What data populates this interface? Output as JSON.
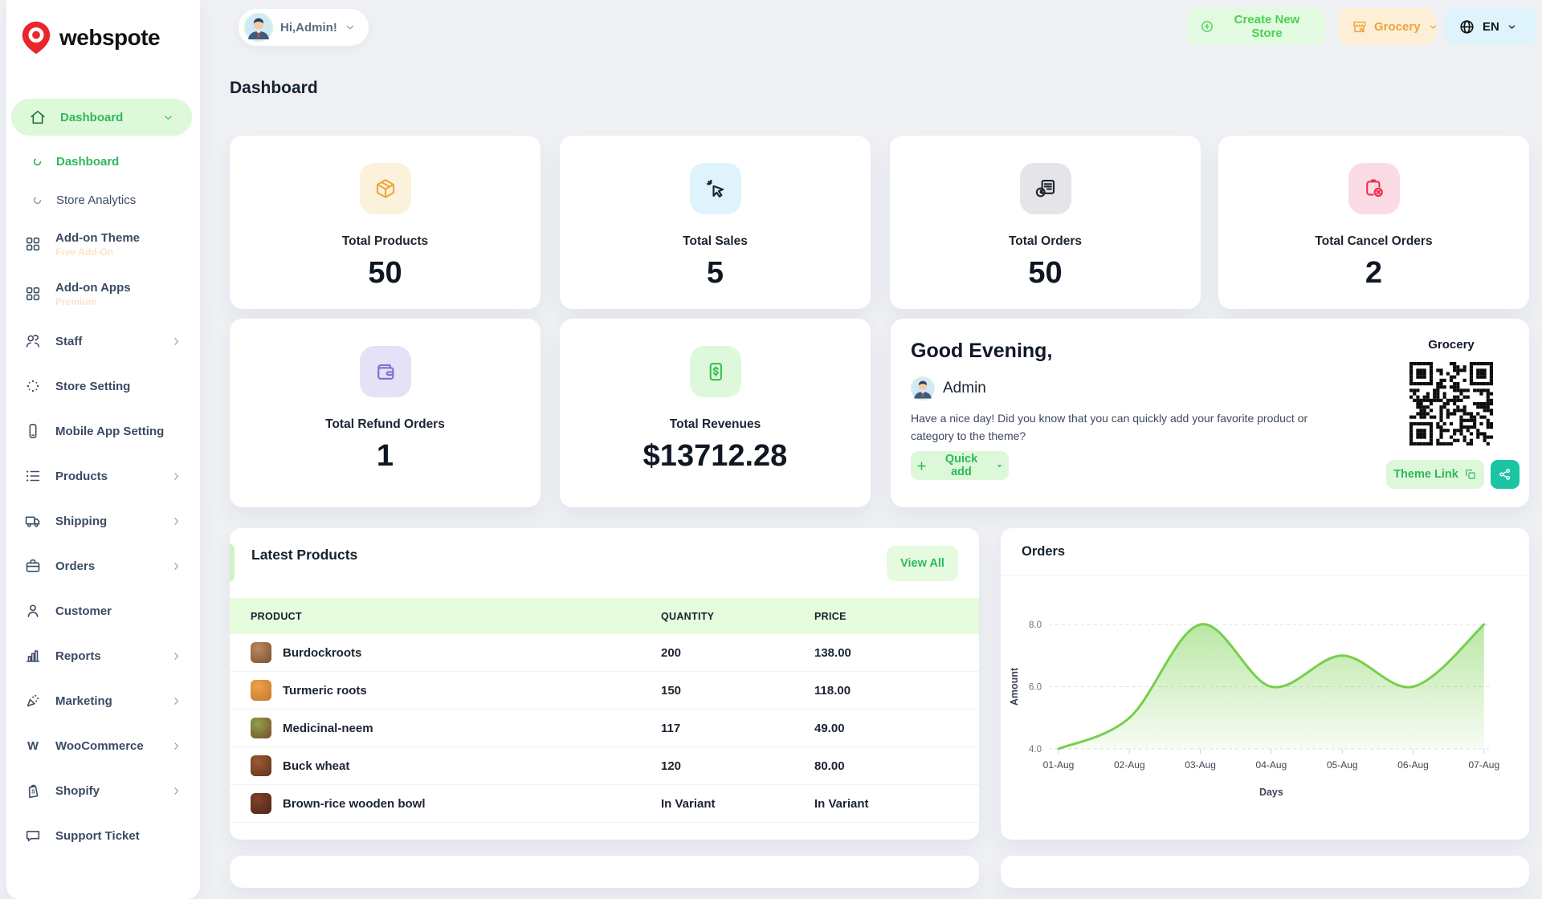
{
  "brand": {
    "name": "webspote"
  },
  "page": {
    "title": "Dashboard"
  },
  "topbar": {
    "user_button": {
      "label": "Hi,Admin!"
    },
    "create_store_label": "Create New Store",
    "store_selector": {
      "label": "Grocery"
    },
    "language": {
      "label": "EN"
    }
  },
  "sidebar": {
    "items": [
      {
        "type": "group",
        "label": "Dashboard",
        "icon": "home-icon",
        "chevron": "down",
        "active": true
      },
      {
        "type": "sub",
        "label": "Dashboard",
        "active": true
      },
      {
        "type": "sub",
        "label": "Store Analytics",
        "active": false
      },
      {
        "type": "addon",
        "label": "Add-on Theme",
        "icon": "grid-icon",
        "badge": "Free Add-On"
      },
      {
        "type": "addon",
        "label": "Add-on Apps",
        "icon": "grid-icon",
        "badge": "Premium"
      },
      {
        "type": "item",
        "label": "Staff",
        "icon": "users-icon",
        "chevron": "right"
      },
      {
        "type": "item",
        "label": "Store Setting",
        "icon": "spinner-dots-icon"
      },
      {
        "type": "item",
        "label": "Mobile App Setting",
        "icon": "smartphone-icon"
      },
      {
        "type": "item",
        "label": "Products",
        "icon": "list-icon",
        "chevron": "right"
      },
      {
        "type": "item",
        "label": "Shipping",
        "icon": "truck-icon",
        "chevron": "right"
      },
      {
        "type": "item",
        "label": "Orders",
        "icon": "briefcase-icon",
        "chevron": "right"
      },
      {
        "type": "item",
        "label": "Customer",
        "icon": "user-icon"
      },
      {
        "type": "item",
        "label": "Reports",
        "icon": "bar-chart-icon",
        "chevron": "right"
      },
      {
        "type": "item",
        "label": "Marketing",
        "icon": "megaphone-icon",
        "chevron": "right"
      },
      {
        "type": "item",
        "label": "WooCommerce",
        "icon": "woocommerce-icon",
        "chevron": "right"
      },
      {
        "type": "item",
        "label": "Shopify",
        "icon": "shopify-icon",
        "chevron": "right"
      },
      {
        "type": "item",
        "label": "Support Ticket",
        "icon": "ticket-icon"
      }
    ]
  },
  "stats": [
    {
      "label": "Total Products",
      "value": "50",
      "icon": "package-icon",
      "tile_bg": "#fcf1da",
      "icon_color": "#eda63d"
    },
    {
      "label": "Total Sales",
      "value": "5",
      "icon": "cursor-click-icon",
      "tile_bg": "#def3fc",
      "icon_color": "#1b2430"
    },
    {
      "label": "Total Orders",
      "value": "50",
      "icon": "order-history-icon",
      "tile_bg": "#e4e4e9",
      "icon_color": "#1b2430"
    },
    {
      "label": "Total Cancel Orders",
      "value": "2",
      "icon": "order-cancel-icon",
      "tile_bg": "#fcdce4",
      "icon_color": "#ef2d4f"
    },
    {
      "label": "Total Refund Orders",
      "value": "1",
      "icon": "wallet-icon",
      "tile_bg": "#e5e1f6",
      "icon_color": "#7e6ed2"
    },
    {
      "label": "Total Revenues",
      "value": "$13712.28",
      "icon": "receipt-dollar-icon",
      "tile_bg": "#def8dc",
      "icon_color": "#3ac24a"
    }
  ],
  "greeting": {
    "title": "Good Evening,",
    "user": "Admin",
    "message": "Have a nice day! Did you know that you can quickly add your favorite product or category to the theme?",
    "quick_add_label": "Quick add",
    "store_name": "Grocery",
    "theme_link_label": "Theme Link"
  },
  "latest_products": {
    "title": "Latest Products",
    "view_all_label": "View All",
    "columns": [
      "PRODUCT",
      "QUANTITY",
      "PRICE"
    ],
    "rows": [
      {
        "name": "Burdockroots",
        "quantity": "200",
        "price": "138.00",
        "thumb": [
          "#b98a62",
          "#7d4f2c"
        ]
      },
      {
        "name": "Turmeric roots",
        "quantity": "150",
        "price": "118.00",
        "thumb": [
          "#eda24e",
          "#c4762a"
        ]
      },
      {
        "name": "Medicinal-neem",
        "quantity": "117",
        "price": "49.00",
        "thumb": [
          "#8fa04e",
          "#7a4b28"
        ]
      },
      {
        "name": "Buck wheat",
        "quantity": "120",
        "price": "80.00",
        "thumb": [
          "#9a5a33",
          "#5e331d"
        ]
      },
      {
        "name": "Brown-rice wooden bowl",
        "quantity": "In Variant",
        "price": "In Variant",
        "thumb": [
          "#82422c",
          "#4e2415"
        ]
      }
    ]
  },
  "chart_data": {
    "type": "area",
    "title": "Orders",
    "x": [
      "01-Aug",
      "02-Aug",
      "03-Aug",
      "04-Aug",
      "05-Aug",
      "06-Aug",
      "07-Aug"
    ],
    "values": [
      4,
      5,
      8,
      6,
      7,
      6,
      8
    ],
    "xlabel": "Days",
    "ylabel": "Amount",
    "yticks": [
      4.0,
      6.0,
      8.0
    ],
    "ylim": [
      4,
      8.4
    ],
    "grid": "dashed-horizontal",
    "legend": "none",
    "line_color": "#76cf4b"
  },
  "colors": {
    "accent_green": "#2eb85c",
    "accent_green_bg": "#ddf7d9",
    "create_store_green": "#4ccf5a",
    "create_store_bg": "#e2fadf",
    "orange": "#f0a43c",
    "orange_bg": "#fdeed6",
    "lang_bg": "#def3fc",
    "teal_share": "#1bc5a3",
    "table_header_bg": "#e7fbdd",
    "page_bg": "#eef0f4",
    "sidebar_text": "#3c4b64",
    "brand_red": "#e8262c"
  }
}
